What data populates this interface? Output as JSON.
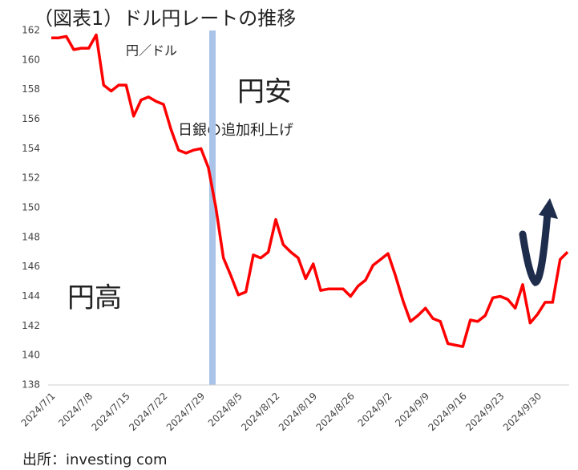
{
  "chart_data": {
    "type": "line",
    "title": "（図表1）ドル円レートの推移",
    "y_label": "円／ドル",
    "annotations": [
      "円安",
      "日銀の追加利上げ",
      "円高"
    ],
    "source": "出所：investing com",
    "categories": [
      "2024/7/1",
      null,
      null,
      null,
      null,
      "2024/7/8",
      null,
      null,
      null,
      null,
      "2024/7/15",
      null,
      null,
      null,
      null,
      "2024/7/22",
      null,
      null,
      null,
      null,
      "2024/7/29",
      null,
      null,
      null,
      null,
      "2024/8/5",
      null,
      null,
      null,
      null,
      "2024/8/12",
      null,
      null,
      null,
      null,
      "2024/8/19",
      null,
      null,
      null,
      null,
      "2024/8/26",
      null,
      null,
      null,
      null,
      "2024/9/2",
      null,
      null,
      null,
      null,
      "2024/9/9",
      null,
      null,
      null,
      null,
      "2024/9/16",
      null,
      null,
      null,
      null,
      "2024/9/23",
      null,
      null,
      null,
      null,
      "2024/9/30",
      null,
      null,
      null,
      null
    ],
    "series": [
      {
        "color": "#ff0000",
        "values": [
          161.5,
          161.5,
          161.6,
          160.7,
          160.8,
          160.8,
          161.7,
          158.3,
          157.9,
          158.3,
          158.3,
          156.2,
          157.3,
          157.5,
          157.2,
          157.0,
          155.3,
          153.9,
          153.7,
          153.9,
          154.0,
          152.7,
          150.0,
          146.6,
          145.4,
          144.1,
          144.3,
          146.8,
          146.6,
          147.0,
          149.2,
          147.5,
          147.0,
          146.6,
          145.2,
          146.2,
          144.4,
          144.5,
          144.5,
          144.5,
          144.0,
          144.7,
          145.1,
          146.1,
          146.5,
          146.9,
          145.4,
          143.7,
          142.3,
          142.7,
          143.2,
          142.5,
          142.3,
          140.8,
          140.7,
          140.6,
          142.4,
          142.3,
          142.7,
          143.9,
          144.0,
          143.8,
          143.2,
          144.8,
          142.2,
          142.8,
          143.6,
          143.6,
          146.5,
          147.0
        ]
      }
    ],
    "ylim": [
      138,
      162
    ],
    "yticks": [
      138,
      140,
      142,
      144,
      146,
      148,
      150,
      152,
      154,
      156,
      158,
      160,
      162
    ],
    "grid": false
  }
}
